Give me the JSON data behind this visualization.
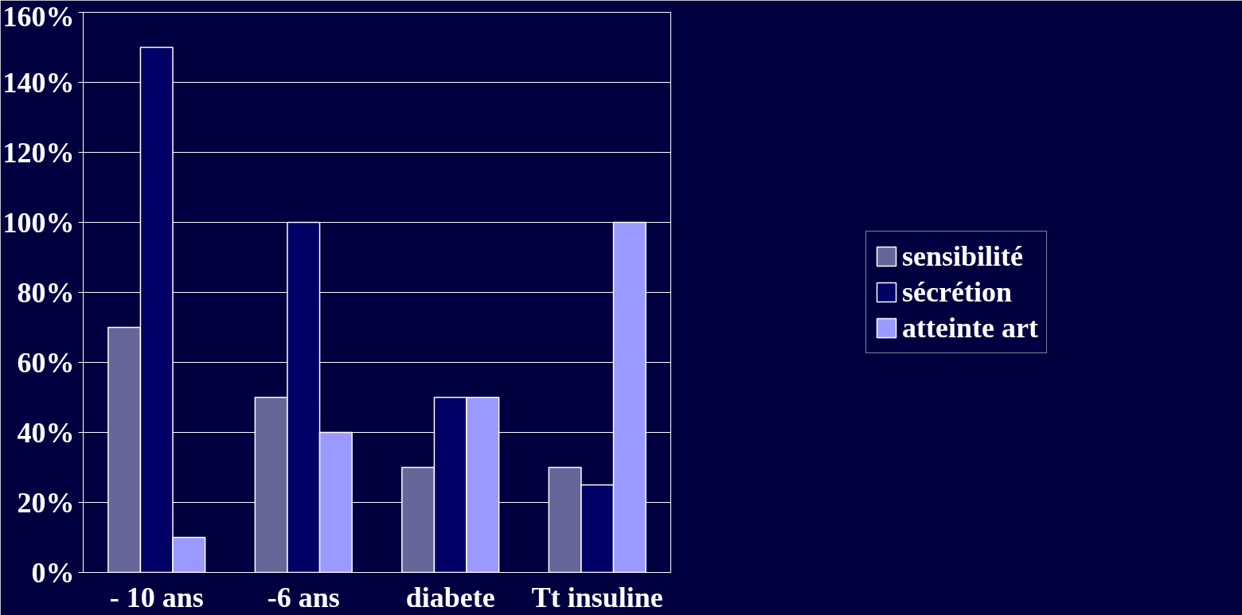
{
  "chart_data": {
    "type": "bar",
    "categories": [
      "- 10 ans",
      "-6 ans",
      "diabete",
      "Tt insuline"
    ],
    "series": [
      {
        "name": "sensibilité",
        "color": "#666699",
        "values": [
          70,
          50,
          30,
          30
        ]
      },
      {
        "name": "sécrétion",
        "color": "#000066",
        "values": [
          150,
          100,
          50,
          25
        ]
      },
      {
        "name": "atteinte art",
        "color": "#9999ff",
        "values": [
          10,
          40,
          50,
          100
        ]
      }
    ],
    "ylim": [
      0,
      160
    ],
    "yticks": [
      {
        "value": 0,
        "label": "0%"
      },
      {
        "value": 20,
        "label": "20%"
      },
      {
        "value": 40,
        "label": "40%"
      },
      {
        "value": 60,
        "label": "60%"
      },
      {
        "value": 80,
        "label": "80%"
      },
      {
        "value": 100,
        "label": "100%"
      },
      {
        "value": 120,
        "label": "120%"
      },
      {
        "value": 140,
        "label": "140%"
      },
      {
        "value": 160,
        "label": "160%"
      }
    ],
    "grid": "y",
    "legend": "right"
  }
}
